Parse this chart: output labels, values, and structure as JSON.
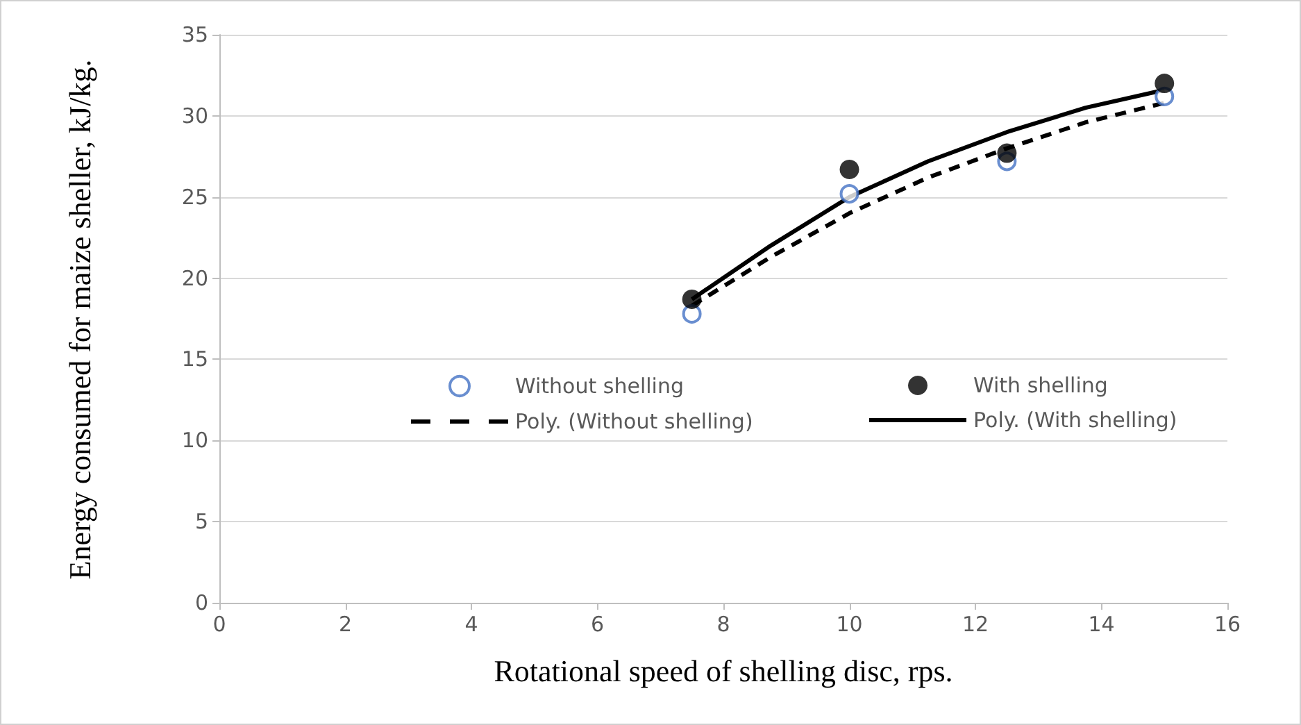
{
  "chart_data": {
    "type": "scatter",
    "xlabel": "Rotational speed of shelling disc, rps.",
    "ylabel": "Energy consumed for maize sheller, kJ/kg.",
    "xlim": [
      0,
      16
    ],
    "xticks": [
      0,
      2,
      4,
      6,
      8,
      10,
      12,
      14,
      16
    ],
    "ylim": [
      0,
      35
    ],
    "yticks": [
      0,
      5,
      10,
      15,
      20,
      25,
      30,
      35
    ],
    "grid": "y",
    "legend": "center",
    "marker": "circle",
    "series": [
      {
        "name": "Without shelling",
        "color": "#4472c4",
        "x": [
          7.5,
          10,
          12.5,
          15
        ],
        "values": [
          17.8,
          25.2,
          27.2,
          31.2
        ]
      },
      {
        "name": "With shelling",
        "color": "#000000",
        "x": [
          7.5,
          10,
          12.5,
          15
        ],
        "values": [
          18.7,
          26.7,
          27.7,
          32.0
        ]
      },
      {
        "name": "Poly. (Without shelling)",
        "type": "line",
        "color": "#000000",
        "line_style": "dashed",
        "marker": "none",
        "x": [
          7.5,
          8.75,
          10,
          11.25,
          12.5,
          13.75,
          15
        ],
        "values": [
          18.3,
          21.3,
          24.0,
          26.2,
          28.0,
          29.6,
          30.8
        ]
      },
      {
        "name": "Poly. (With shelling)",
        "type": "line",
        "color": "#000000",
        "line_style": "solid",
        "marker": "none",
        "x": [
          7.5,
          8.75,
          10,
          11.25,
          12.5,
          13.75,
          15
        ],
        "values": [
          18.7,
          22.0,
          25.0,
          27.2,
          29.0,
          30.5,
          31.6
        ]
      }
    ]
  }
}
